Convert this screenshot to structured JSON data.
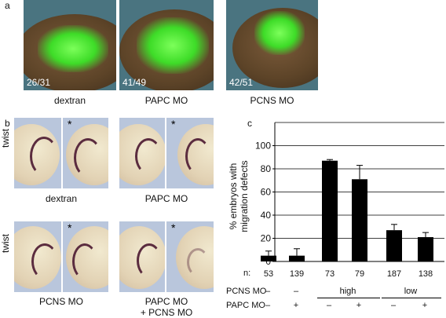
{
  "panel_a": {
    "letter": "a",
    "images": [
      {
        "count": "26/31",
        "caption": "dextran"
      },
      {
        "count": "41/49",
        "caption": "PAPC MO"
      },
      {
        "count": "42/51",
        "caption": "PCNS MO"
      }
    ]
  },
  "panel_b": {
    "letter": "b",
    "row_label": "twist",
    "star": "*",
    "captions": [
      "dextran",
      "PAPC MO",
      "PCNS MO",
      "PAPC MO",
      "+ PCNS MO"
    ]
  },
  "panel_c": {
    "letter": "c",
    "n_label": "n:",
    "n_values": [
      "53",
      "139",
      "73",
      "79",
      "187",
      "138"
    ],
    "row_labels": [
      "PCNS MO",
      "PAPC MO"
    ],
    "pcns_marks": [
      "–",
      "–",
      "high",
      "low"
    ],
    "papc_marks": [
      "–",
      "+",
      "–",
      "+",
      "–",
      "+"
    ],
    "colors": {
      "bar": "#000000",
      "axis": "#000000"
    }
  },
  "chart_data": {
    "type": "bar",
    "ylabel": "% embryos with migration defects",
    "ylabel_lines": [
      "% embryos with",
      "migration defects"
    ],
    "ylim": [
      0,
      120
    ],
    "yticks": [
      0,
      20,
      40,
      60,
      80,
      100
    ],
    "grid": true,
    "values": [
      5,
      5,
      87,
      71,
      27,
      21
    ],
    "errors": [
      4,
      6,
      1,
      12,
      5,
      4
    ],
    "n": [
      53,
      139,
      73,
      79,
      187,
      138
    ]
  }
}
